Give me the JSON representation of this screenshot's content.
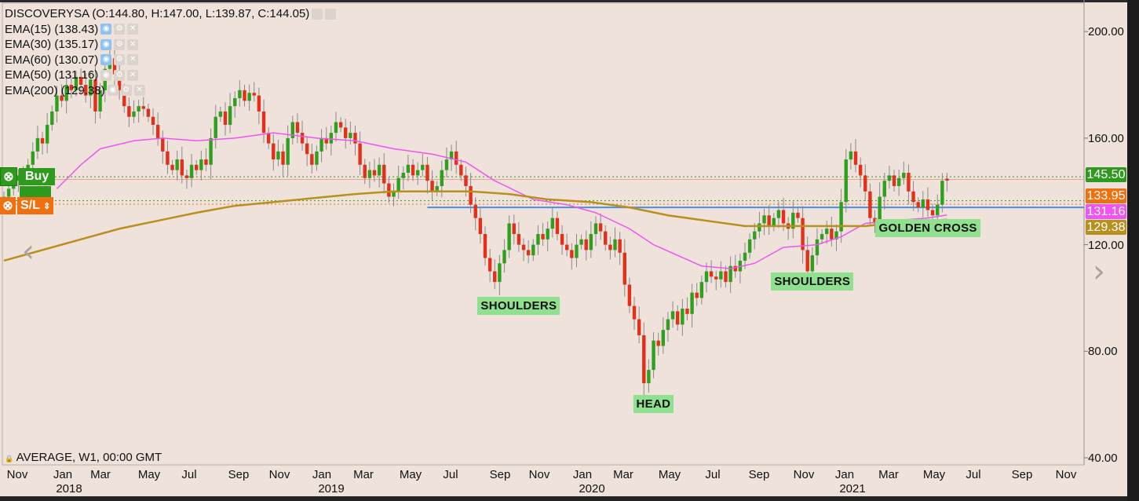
{
  "header": {
    "symbol_line": "DISCOVERYSA (O:144.80, H:147.00, L:139.87, C:144.05)",
    "indicators": [
      {
        "label": "EMA(15) (138.43)",
        "visible": true
      },
      {
        "label": "EMA(30) (135.17)",
        "visible": true
      },
      {
        "label": "EMA(60) (130.07)",
        "visible": true
      },
      {
        "label": "EMA(50) (131.16)",
        "visible": false
      },
      {
        "label": "EMA(200) (129.38)",
        "visible": false
      }
    ],
    "icons": [
      "eye-icon",
      "gear-icon",
      "close-icon"
    ]
  },
  "footer": {
    "text": "AVERAGE, W1, 00:00 GMT"
  },
  "trade_buttons": {
    "buy_label": "Buy",
    "sl_label": "S/L"
  },
  "colors": {
    "up": "#2ea01e",
    "down": "#e2301a",
    "ema_fast": "#f055f0",
    "ema_slow": "#b8901e",
    "level_line": "#4a90e2",
    "buy": "#2e9a1e",
    "sl": "#f07010",
    "annotation_bg": "#8fe08f",
    "background": "#eee2db"
  },
  "chart_data": {
    "type": "candlestick",
    "interval": "W1",
    "y_ticks": [
      "200.00",
      "160.00",
      "120.00",
      "80.00",
      "40.00"
    ],
    "ylim": [
      40,
      200
    ],
    "x_ticks": [
      "Nov",
      "Jan",
      "Mar",
      "May",
      "Jul",
      "Sep",
      "Nov",
      "Jan",
      "Mar",
      "May",
      "Jul",
      "Sep",
      "Nov",
      "Jan",
      "Mar",
      "May",
      "Jul",
      "Sep",
      "Nov",
      "Jan",
      "Mar",
      "May",
      "Jul",
      "Sep",
      "Nov"
    ],
    "x_years": [
      "2018",
      "2019",
      "2020",
      "2021"
    ],
    "first_open": 135,
    "closes": [
      138,
      141,
      144,
      146,
      145,
      150,
      155,
      160,
      158,
      165,
      170,
      176,
      174,
      180,
      178,
      183,
      180,
      176,
      182,
      170,
      178,
      186,
      190,
      184,
      178,
      172,
      168,
      170,
      172,
      171,
      168,
      165,
      160,
      155,
      150,
      148,
      152,
      146,
      145,
      150,
      148,
      152,
      150,
      160,
      168,
      170,
      165,
      172,
      175,
      178,
      174,
      177,
      176,
      170,
      162,
      158,
      152,
      155,
      150,
      160,
      166,
      162,
      158,
      154,
      150,
      155,
      160,
      158,
      162,
      166,
      164,
      160,
      162,
      158,
      150,
      145,
      148,
      146,
      150,
      143,
      138,
      140,
      145,
      147,
      150,
      146,
      148,
      150,
      144,
      140,
      142,
      148,
      152,
      155,
      150,
      146,
      142,
      135,
      130,
      124,
      115,
      110,
      106,
      113,
      118,
      128,
      124,
      120,
      118,
      116,
      120,
      124,
      122,
      126,
      130,
      124,
      120,
      118,
      115,
      120,
      122,
      118,
      124,
      128,
      125,
      120,
      118,
      122,
      117,
      105,
      97,
      92,
      86,
      68,
      73,
      84,
      82,
      88,
      92,
      95,
      90,
      96,
      94,
      102,
      100,
      106,
      110,
      108,
      107,
      110,
      106,
      112,
      110,
      114,
      117,
      122,
      125,
      128,
      131,
      127,
      130,
      133,
      128,
      126,
      132,
      130,
      118,
      110,
      116,
      122,
      124,
      126,
      122,
      125,
      136,
      152,
      155,
      150,
      146,
      140,
      130,
      128,
      138,
      144,
      146,
      142,
      145,
      147,
      140,
      136,
      134,
      137,
      133,
      131,
      135,
      144,
      144.05
    ],
    "last_bar": {
      "open": 144.8,
      "high": 147.0,
      "low": 139.87,
      "close": 144.05
    },
    "ema_lines": [
      {
        "name": "EMA(50)",
        "value": 131.16,
        "points": [
          [
            11,
            141
          ],
          [
            16,
            150
          ],
          [
            20,
            156
          ],
          [
            27,
            159
          ],
          [
            33,
            160
          ],
          [
            40,
            159
          ],
          [
            48,
            160
          ],
          [
            56,
            162
          ],
          [
            65,
            160
          ],
          [
            73,
            159
          ],
          [
            81,
            156
          ],
          [
            89,
            154
          ],
          [
            96,
            151
          ],
          [
            102,
            144
          ],
          [
            110,
            137
          ],
          [
            117,
            135
          ],
          [
            123,
            132
          ],
          [
            130,
            126
          ],
          [
            135,
            120
          ],
          [
            140,
            116
          ],
          [
            145,
            112
          ],
          [
            151,
            111
          ],
          [
            156,
            113
          ],
          [
            162,
            119
          ],
          [
            169,
            120
          ],
          [
            174,
            123
          ],
          [
            179,
            128
          ],
          [
            185,
            129
          ],
          [
            192,
            130
          ],
          [
            196,
            131.16
          ]
        ]
      },
      {
        "name": "EMA(200)",
        "value": 129.38,
        "points": [
          [
            0,
            114
          ],
          [
            8,
            118
          ],
          [
            16,
            122
          ],
          [
            24,
            126
          ],
          [
            32,
            129
          ],
          [
            40,
            132
          ],
          [
            48,
            134.6
          ],
          [
            56,
            136
          ],
          [
            65,
            137.6
          ],
          [
            73,
            139
          ],
          [
            81,
            140
          ],
          [
            89,
            140
          ],
          [
            97,
            140
          ],
          [
            105,
            139
          ],
          [
            113,
            137
          ],
          [
            122,
            136
          ],
          [
            130,
            134
          ],
          [
            138,
            131
          ],
          [
            146,
            129
          ],
          [
            154,
            127
          ],
          [
            162,
            127
          ],
          [
            170,
            127
          ],
          [
            179,
            127
          ],
          [
            187,
            128.5
          ],
          [
            196,
            129.38
          ]
        ]
      }
    ],
    "levels": [
      {
        "label": "145.50",
        "value": 145.5,
        "kind": "buy"
      },
      {
        "label": "133.95",
        "value": 133.95,
        "kind": "stop-loss"
      },
      {
        "label": "131.16",
        "value": 131.16,
        "kind": "ema"
      },
      {
        "label": "129.38",
        "value": 129.38,
        "kind": "ema200"
      }
    ],
    "support_line": {
      "value": 134.0,
      "from_week": 88
    },
    "annotations": [
      {
        "text": "SHOULDERS",
        "week": 107,
        "value": 97
      },
      {
        "text": "HEAD",
        "week": 135,
        "value": 60
      },
      {
        "text": "SHOULDERS",
        "week": 168,
        "value": 106
      },
      {
        "text": "GOLDEN CROSS",
        "week": 192,
        "value": 126
      }
    ]
  }
}
